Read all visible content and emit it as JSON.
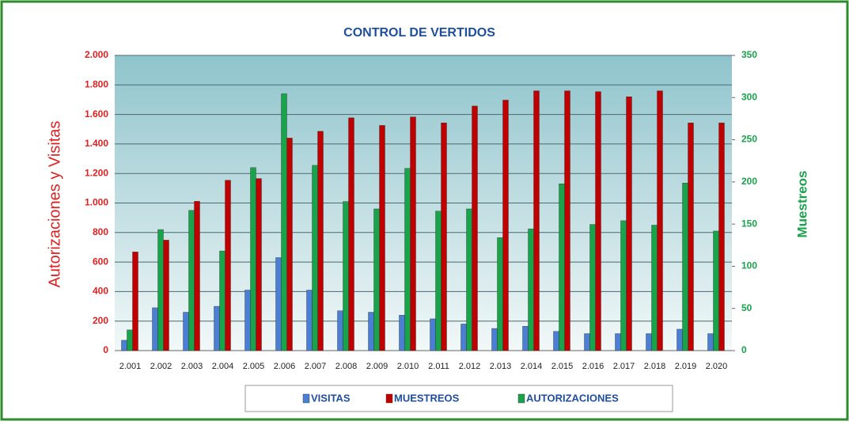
{
  "chart_data": {
    "type": "bar",
    "title": "CONTROL DE VERTIDOS",
    "y_label": "Autorizaciones y Visitas",
    "y2_label": "Muestreos",
    "categories": [
      "2.001",
      "2.002",
      "2.003",
      "2.004",
      "2.005",
      "2.006",
      "2.007",
      "2.008",
      "2.009",
      "2.010",
      "2.011",
      "2.012",
      "2.013",
      "2.014",
      "2.015",
      "2.016",
      "2.017",
      "2.018",
      "2.019",
      "2.020"
    ],
    "series": [
      {
        "name": "VISITAS",
        "color": "#4a7fd4",
        "values": [
          70,
          290,
          260,
          300,
          410,
          630,
          410,
          270,
          260,
          240,
          215,
          180,
          150,
          165,
          130,
          115,
          115,
          115,
          145,
          115
        ]
      },
      {
        "name": "MUESTREOS",
        "color": "#c00000",
        "axis": "y2",
        "values": [
          117,
          131,
          177,
          202,
          204,
          252,
          260,
          276,
          267,
          277,
          270,
          290,
          297,
          308,
          308,
          307,
          301,
          308,
          270,
          270
        ]
      },
      {
        "name": "AUTORIZACIONES",
        "color": "#19a34b",
        "values": [
          140,
          820,
          950,
          675,
          1240,
          1740,
          1255,
          1010,
          960,
          1235,
          945,
          960,
          765,
          825,
          1130,
          855,
          880,
          850,
          1135,
          810
        ]
      }
    ],
    "ylim": [
      0,
      2000
    ],
    "yticks": [
      0,
      200,
      400,
      600,
      800,
      {
        "value": 1000,
        "label": "1.000"
      },
      {
        "value": 1200,
        "label": "1.200"
      },
      {
        "value": 1400,
        "label": "1.400"
      },
      {
        "value": 1600,
        "label": "1.600"
      },
      {
        "value": 1800,
        "label": "1.800"
      },
      {
        "value": 2000,
        "label": "2.000"
      }
    ],
    "y2lim": [
      0,
      350
    ],
    "y2ticks": [
      0,
      50,
      100,
      150,
      200,
      250,
      300,
      350
    ],
    "grid": true
  }
}
